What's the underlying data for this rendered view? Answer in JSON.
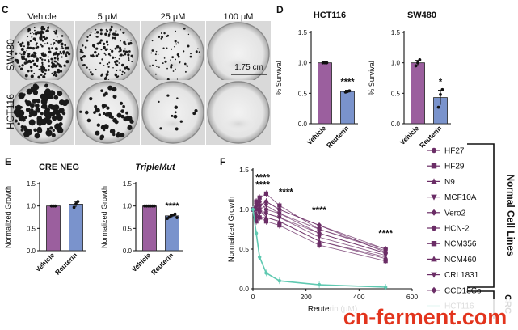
{
  "panels": {
    "C": {
      "label": "C",
      "columns": [
        "Vehicle",
        "5 μM",
        "25 μM",
        "100 μM"
      ],
      "rows": [
        "SW480",
        "HCT116"
      ],
      "scale_bar": "1.75 cm"
    },
    "D": {
      "label": "D"
    },
    "E": {
      "label": "E"
    },
    "F": {
      "label": "F"
    }
  },
  "colors": {
    "vehicle": "#9b5f9e",
    "reuterin": "#7a93cc",
    "hct116_line": "#5fc9b1",
    "normal_line": "#6b2d66"
  },
  "chart_data": [
    {
      "id": "D-HCT116",
      "type": "bar",
      "title": "HCT116",
      "categories": [
        "Vehicle",
        "Reuterin"
      ],
      "values": [
        1.0,
        0.53
      ],
      "errors": [
        0.01,
        0.02
      ],
      "points": [
        [
          1.0,
          1.0,
          1.0
        ],
        [
          0.52,
          0.53,
          0.54
        ]
      ],
      "ylabel": "% Survival",
      "ylim": [
        0,
        1.5
      ],
      "yticks": [
        "0.0",
        "0.5",
        "1.0",
        "1.5"
      ],
      "significance": [
        "",
        "****"
      ]
    },
    {
      "id": "D-SW480",
      "type": "bar",
      "title": "SW480",
      "categories": [
        "Vehicle",
        "Reuterin"
      ],
      "values": [
        1.0,
        0.43
      ],
      "errors": [
        0.04,
        0.12
      ],
      "points": [
        [
          0.95,
          1.0,
          1.05
        ],
        [
          0.27,
          0.48,
          0.56
        ]
      ],
      "ylabel": "% Survival",
      "ylim": [
        0,
        1.5
      ],
      "yticks": [
        "0.0",
        "0.5",
        "1.0",
        "1.5"
      ],
      "significance": [
        "",
        "*"
      ]
    },
    {
      "id": "E-CRENEG",
      "type": "bar",
      "title": "CRE NEG",
      "categories": [
        "Vehicle",
        "Reuterin"
      ],
      "values": [
        1.0,
        1.04
      ],
      "errors": [
        0.01,
        0.06
      ],
      "points": [
        [
          1.0,
          1.0,
          1.0
        ],
        [
          0.97,
          1.05,
          1.1
        ]
      ],
      "ylabel": "Normalized Growth",
      "ylim": [
        0,
        1.5
      ],
      "yticks": [
        "0.0",
        "0.5",
        "1.0",
        "1.5"
      ],
      "significance": [
        "",
        ""
      ]
    },
    {
      "id": "E-TripleMut",
      "type": "bar",
      "title": "TripleMut",
      "categories": [
        "Vehicle",
        "Reuterin"
      ],
      "values": [
        1.0,
        0.78
      ],
      "errors": [
        0.005,
        0.03
      ],
      "points": [
        [
          1.0,
          1.0,
          1.0,
          1.0,
          1.0,
          1.0
        ],
        [
          0.72,
          0.75,
          0.78,
          0.8,
          0.82,
          0.74
        ]
      ],
      "ylabel": "Normalized Growth",
      "ylim": [
        0,
        1.5
      ],
      "yticks": [
        "0.0",
        "0.5",
        "1.0",
        "1.5"
      ],
      "significance": [
        "",
        "****"
      ]
    },
    {
      "id": "F",
      "type": "line",
      "xlabel": "Reuterin (μM)",
      "ylabel": "Normalized Growth",
      "xlim": [
        0,
        600
      ],
      "ylim": [
        0,
        1.5
      ],
      "xticks": [
        "0",
        "200",
        "400",
        "600"
      ],
      "yticks": [
        "0.0",
        "0.5",
        "1.0",
        "1.5"
      ],
      "x": [
        0,
        12.5,
        25,
        50,
        100,
        250,
        500
      ],
      "series": [
        {
          "name": "HF27",
          "marker": "circle",
          "values": [
            1.0,
            1.05,
            1.1,
            1.0,
            0.95,
            0.7,
            0.45
          ]
        },
        {
          "name": "HF29",
          "marker": "square",
          "values": [
            1.0,
            1.1,
            1.15,
            1.2,
            1.05,
            0.75,
            0.5
          ]
        },
        {
          "name": "N9",
          "marker": "triangle-up",
          "values": [
            1.0,
            0.95,
            1.0,
            0.9,
            0.85,
            0.6,
            0.4
          ]
        },
        {
          "name": "MCF10A",
          "marker": "triangle-down",
          "values": [
            1.0,
            1.05,
            0.95,
            0.95,
            0.9,
            0.65,
            0.42
          ]
        },
        {
          "name": "Vero2",
          "marker": "diamond",
          "values": [
            1.0,
            0.9,
            1.0,
            0.95,
            0.9,
            0.7,
            0.45
          ]
        },
        {
          "name": "HCN-2",
          "marker": "circle",
          "values": [
            1.0,
            1.0,
            1.05,
            1.1,
            1.0,
            0.8,
            0.5
          ]
        },
        {
          "name": "NCM356",
          "marker": "square",
          "values": [
            1.0,
            0.85,
            0.9,
            0.85,
            0.8,
            0.55,
            0.35
          ]
        },
        {
          "name": "NCM460",
          "marker": "triangle-up",
          "values": [
            1.0,
            0.95,
            0.9,
            0.9,
            0.85,
            0.6,
            0.38
          ]
        },
        {
          "name": "CRL1831",
          "marker": "triangle-down",
          "values": [
            1.0,
            1.0,
            1.0,
            1.05,
            0.95,
            0.75,
            0.48
          ]
        },
        {
          "name": "CCD18Co",
          "marker": "diamond",
          "values": [
            1.0,
            1.1,
            1.05,
            1.1,
            1.0,
            0.8,
            0.46
          ]
        },
        {
          "name": "HCT116",
          "marker": "circle",
          "values": [
            1.0,
            0.7,
            0.4,
            0.2,
            0.1,
            0.05,
            0.02
          ]
        }
      ],
      "significance": [
        {
          "x": 25,
          "label": "****"
        },
        {
          "x": 50,
          "label": "****"
        },
        {
          "x": 100,
          "label": "****"
        },
        {
          "x": 250,
          "label": "****"
        },
        {
          "x": 500,
          "label": "****"
        }
      ],
      "groups": [
        "Normal Cell Lines",
        "CRC"
      ]
    }
  ],
  "watermark": "cn-ferment.com"
}
